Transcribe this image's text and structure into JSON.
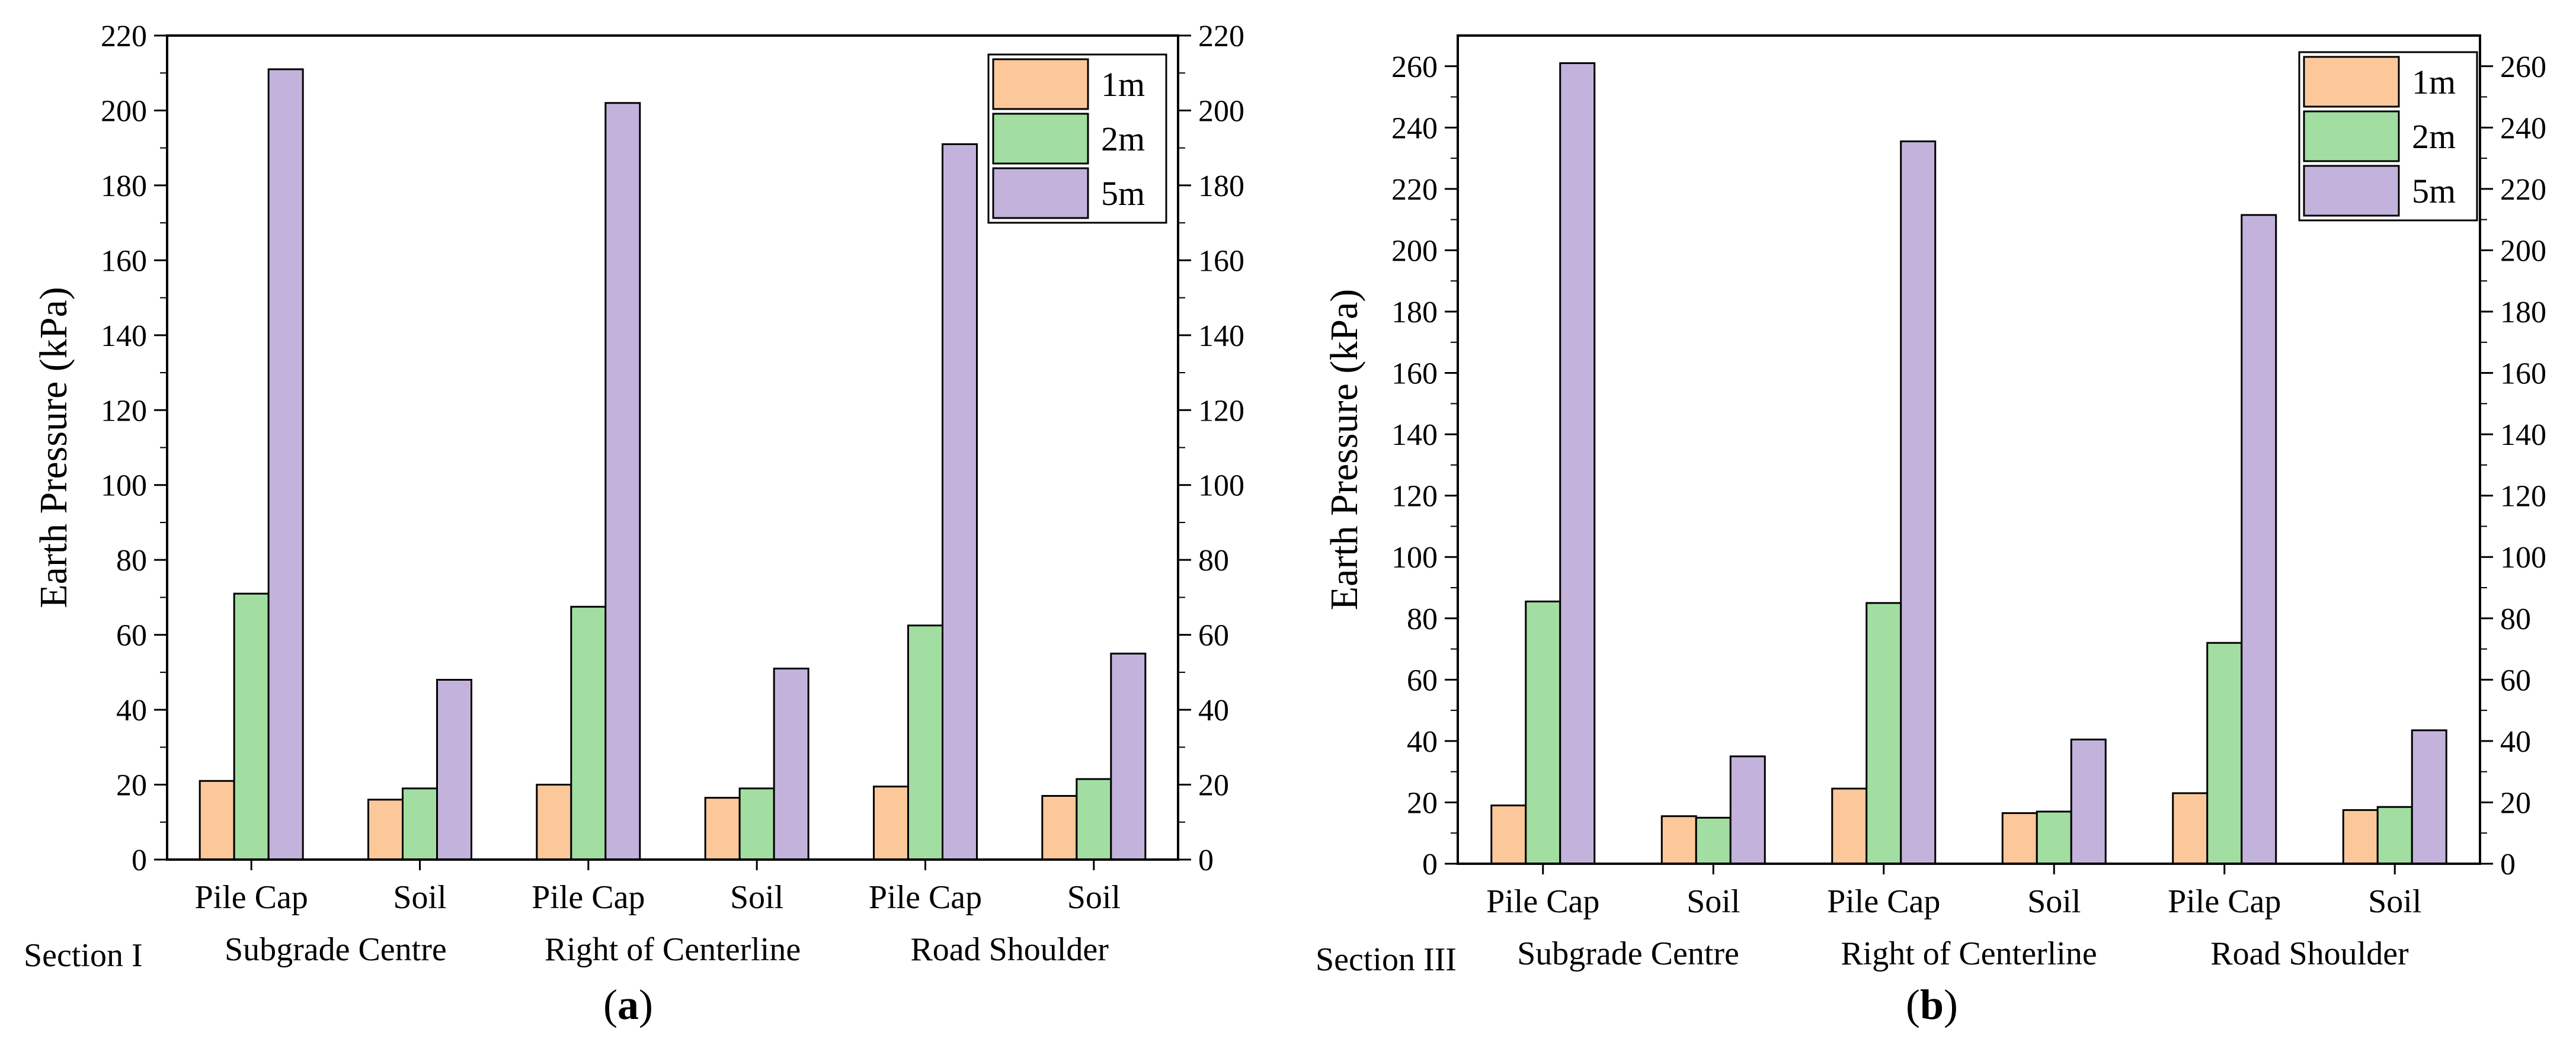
{
  "chart_data": [
    {
      "type": "bar",
      "panel_label": "a",
      "section_label": "Section  I",
      "categories": [
        "Pile Cap",
        "Soil",
        "Pile Cap",
        "Soil",
        "Pile Cap",
        "Soil"
      ],
      "group_labels": [
        "Subgrade Centre",
        "Right of Centerline",
        "Road Shoulder"
      ],
      "ylabel": "Earth Pressure (kPa)",
      "ylim": [
        0,
        220
      ],
      "yticks": [
        0,
        20,
        40,
        60,
        80,
        100,
        120,
        140,
        160,
        180,
        200,
        220
      ],
      "legend_position": "top-right",
      "series": [
        {
          "name": "1m",
          "color": "#fcc89a",
          "values": [
            21,
            16,
            20,
            16.5,
            19.5,
            17
          ]
        },
        {
          "name": "2m",
          "color": "#a2dea2",
          "values": [
            71,
            19,
            67.5,
            19,
            62.5,
            21.5
          ]
        },
        {
          "name": "5m",
          "color": "#c3b3dc",
          "values": [
            211,
            48,
            202,
            51,
            191,
            55
          ]
        }
      ]
    },
    {
      "type": "bar",
      "panel_label": "b",
      "section_label": "Section III",
      "categories": [
        "Pile Cap",
        "Soil",
        "Pile Cap",
        "Soil",
        "Pile Cap",
        "Soil"
      ],
      "group_labels": [
        "Subgrade Centre",
        "Right of Centerline",
        "Road Shoulder"
      ],
      "ylabel": "Earth Pressure (kPa)",
      "ylim": [
        0,
        270
      ],
      "yticks": [
        0,
        20,
        40,
        60,
        80,
        100,
        120,
        140,
        160,
        180,
        200,
        220,
        240,
        260
      ],
      "legend_position": "top-right",
      "series": [
        {
          "name": "1m",
          "color": "#fcc89a",
          "values": [
            19,
            15.5,
            24.5,
            16.5,
            23,
            17.5
          ]
        },
        {
          "name": "2m",
          "color": "#a2dea2",
          "values": [
            85.5,
            15,
            85,
            17,
            72,
            18.5
          ]
        },
        {
          "name": "5m",
          "color": "#c3b3dc",
          "values": [
            261,
            35,
            235.5,
            40.5,
            211.5,
            43.5
          ]
        }
      ]
    }
  ]
}
